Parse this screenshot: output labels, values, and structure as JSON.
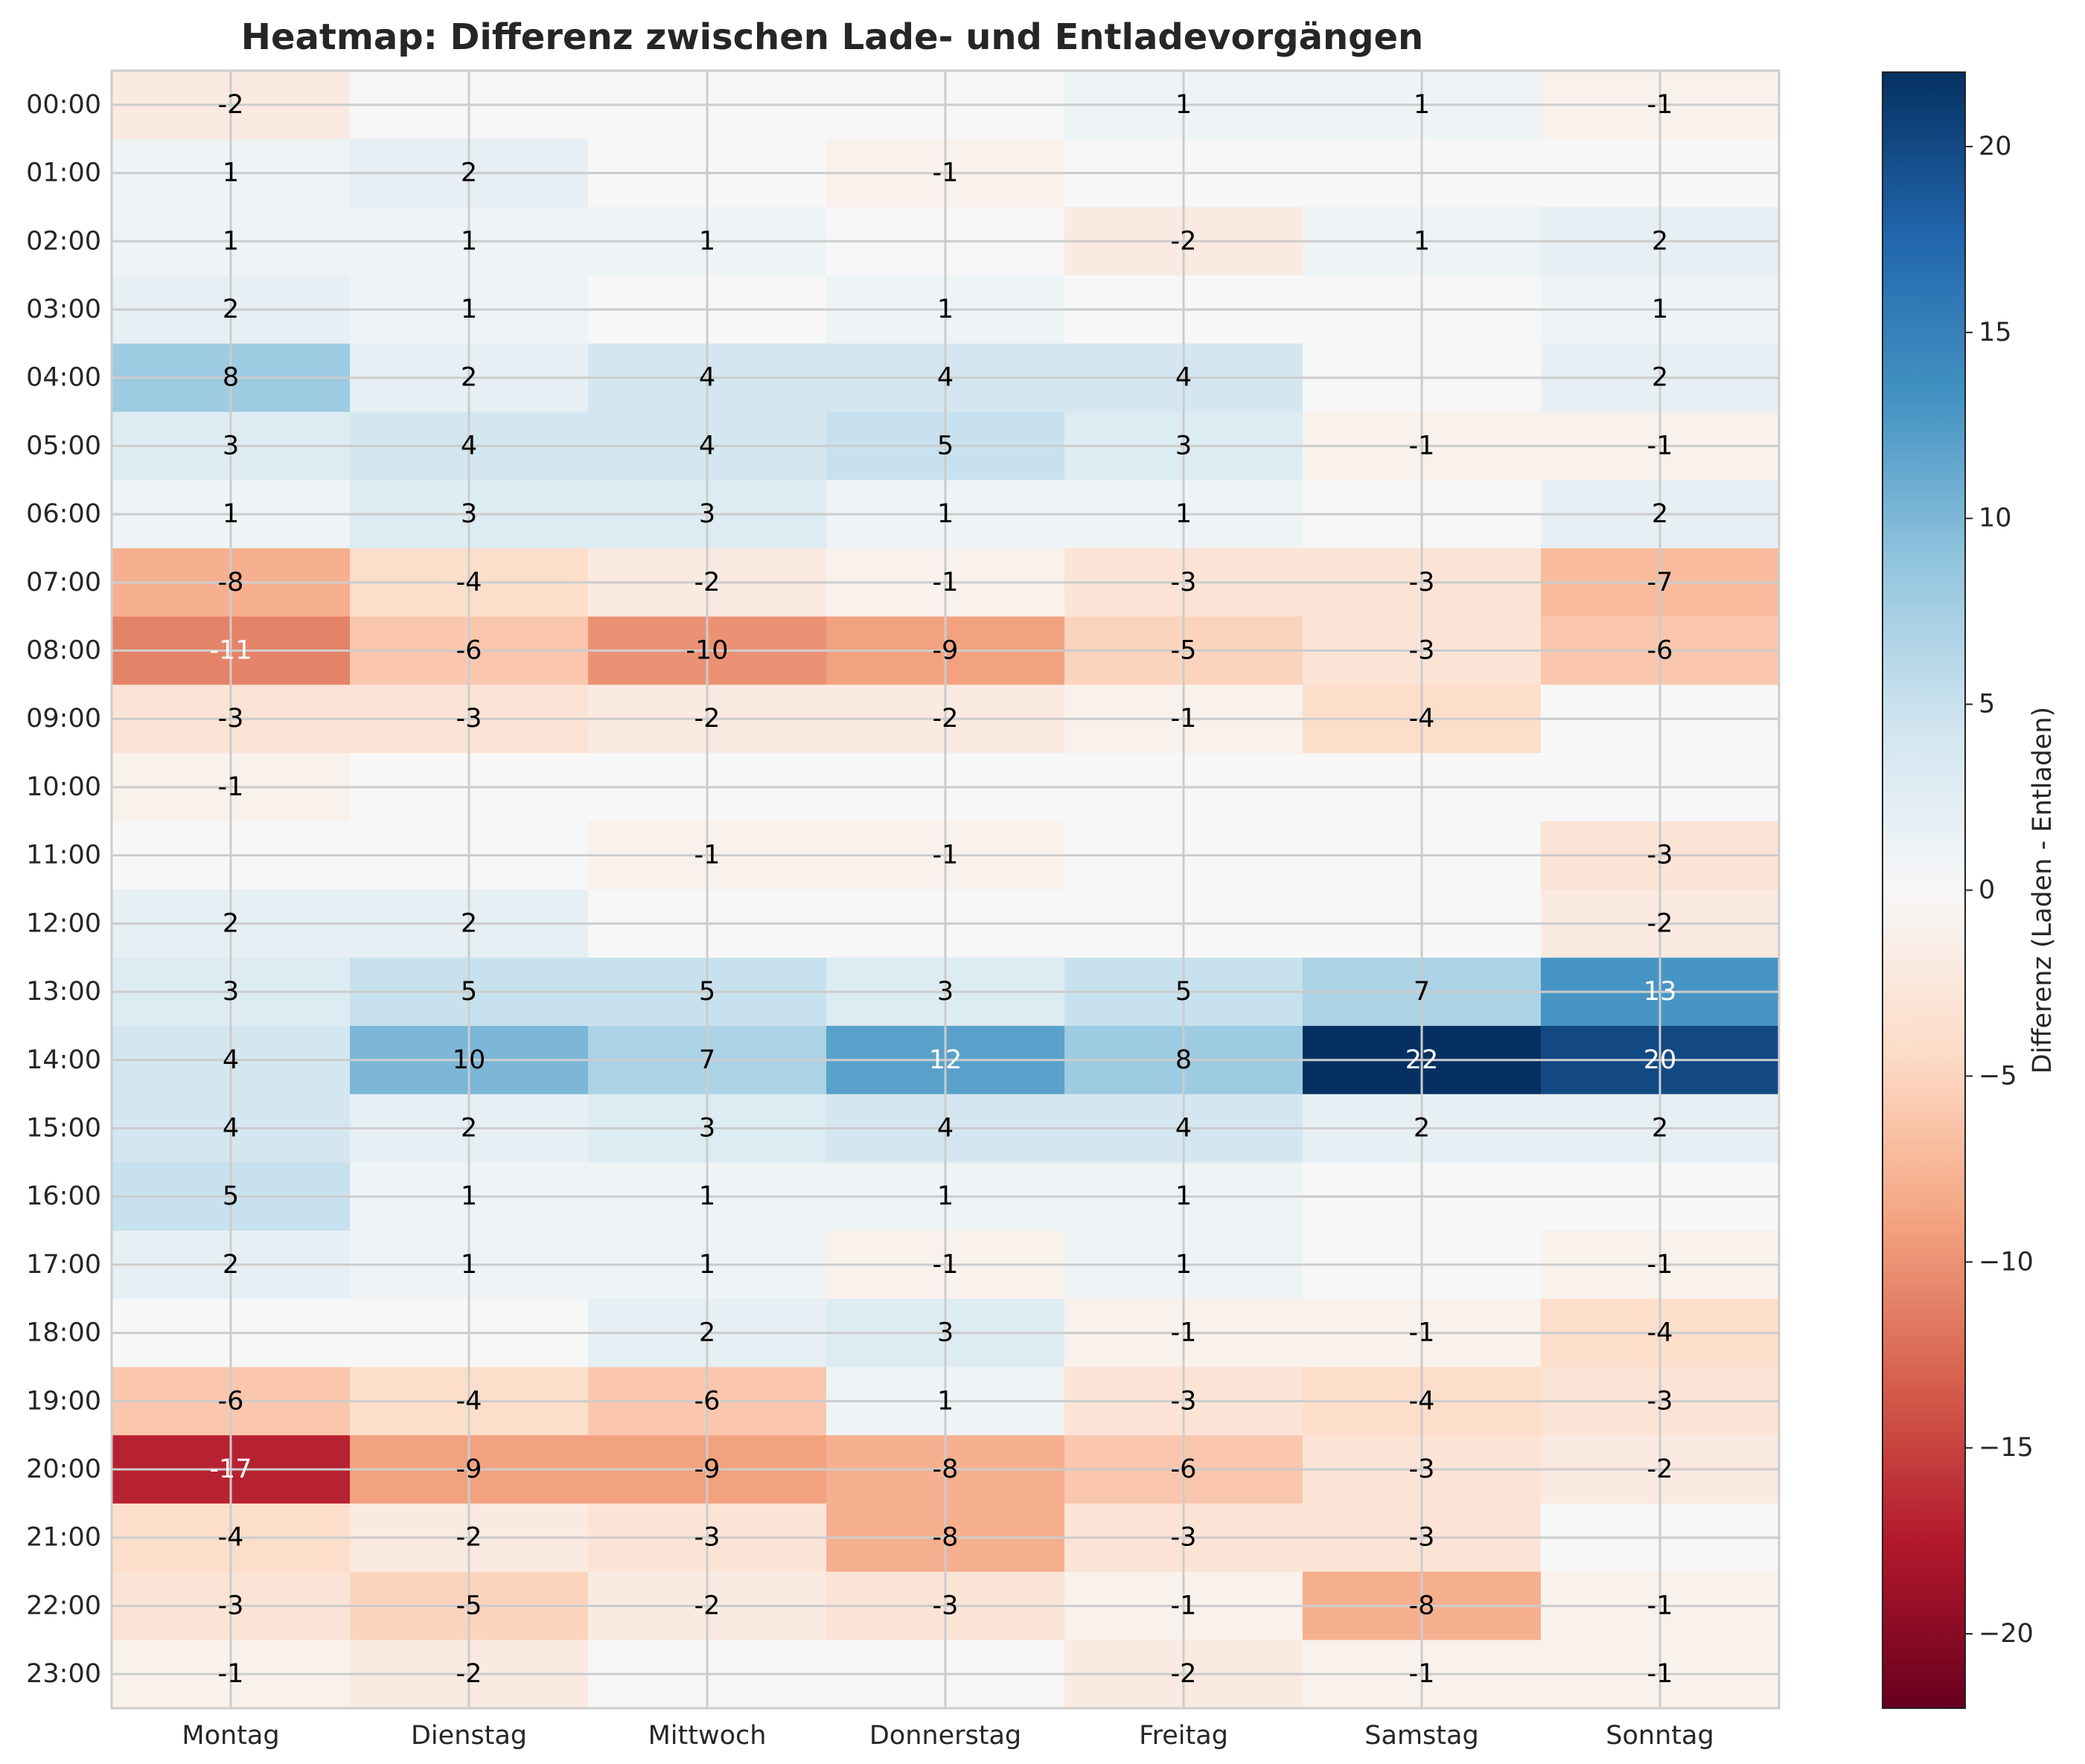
{
  "chart_data": {
    "type": "heatmap",
    "title": "Heatmap: Differenz zwischen Lade- und Entladevorgängen",
    "xlabel": "",
    "ylabel": "",
    "x_categories": [
      "Montag",
      "Dienstag",
      "Mittwoch",
      "Donnerstag",
      "Freitag",
      "Samstag",
      "Sonntag"
    ],
    "y_categories": [
      "00:00",
      "01:00",
      "02:00",
      "03:00",
      "04:00",
      "05:00",
      "06:00",
      "07:00",
      "08:00",
      "09:00",
      "10:00",
      "11:00",
      "12:00",
      "13:00",
      "14:00",
      "15:00",
      "16:00",
      "17:00",
      "18:00",
      "19:00",
      "20:00",
      "21:00",
      "22:00",
      "23:00"
    ],
    "values": [
      [
        -2,
        0,
        0,
        0,
        1,
        1,
        -1
      ],
      [
        1,
        2,
        0,
        -1,
        0,
        0,
        0
      ],
      [
        1,
        1,
        1,
        0,
        -2,
        1,
        2
      ],
      [
        2,
        1,
        0,
        1,
        0,
        0,
        1
      ],
      [
        8,
        2,
        4,
        4,
        4,
        0,
        2
      ],
      [
        3,
        4,
        4,
        5,
        3,
        -1,
        -1
      ],
      [
        1,
        3,
        3,
        1,
        1,
        0,
        2
      ],
      [
        -8,
        -4,
        -2,
        -1,
        -3,
        -3,
        -7
      ],
      [
        -11,
        -6,
        -10,
        -9,
        -5,
        -3,
        -6
      ],
      [
        -3,
        -3,
        -2,
        -2,
        -1,
        -4,
        0
      ],
      [
        -1,
        0,
        0,
        0,
        0,
        0,
        0
      ],
      [
        0,
        0,
        -1,
        -1,
        0,
        0,
        -3
      ],
      [
        2,
        2,
        0,
        0,
        0,
        0,
        -2
      ],
      [
        3,
        5,
        5,
        3,
        5,
        7,
        13
      ],
      [
        4,
        10,
        7,
        12,
        8,
        22,
        20
      ],
      [
        4,
        2,
        3,
        4,
        4,
        2,
        2
      ],
      [
        5,
        1,
        1,
        1,
        1,
        0,
        0
      ],
      [
        2,
        1,
        1,
        -1,
        1,
        0,
        -1
      ],
      [
        0,
        0,
        2,
        3,
        -1,
        -1,
        -4
      ],
      [
        -6,
        -4,
        -6,
        1,
        -3,
        -4,
        -3
      ],
      [
        -17,
        -9,
        -9,
        -8,
        -6,
        -3,
        -2
      ],
      [
        -4,
        -2,
        -3,
        -8,
        -3,
        -3,
        0
      ],
      [
        -3,
        -5,
        -2,
        -3,
        -1,
        -8,
        -1
      ],
      [
        -1,
        -2,
        0,
        0,
        -2,
        -1,
        -1
      ]
    ],
    "zero_cells_labeled": false,
    "colormap": "RdBu",
    "vmin": -22,
    "vmax": 22,
    "colorbar_label": "Differenz (Laden - Entladen)",
    "colorbar_ticks": [
      "20",
      "15",
      "10",
      "5",
      "0",
      "−5",
      "−10",
      "−15",
      "−20"
    ],
    "colorbar_tick_values": [
      20,
      15,
      10,
      5,
      0,
      -5,
      -10,
      -15,
      -20
    ],
    "grid": true,
    "grid_color": "#cccccc",
    "label_color_dark": "#000000",
    "label_color_light": "#ffffff"
  }
}
